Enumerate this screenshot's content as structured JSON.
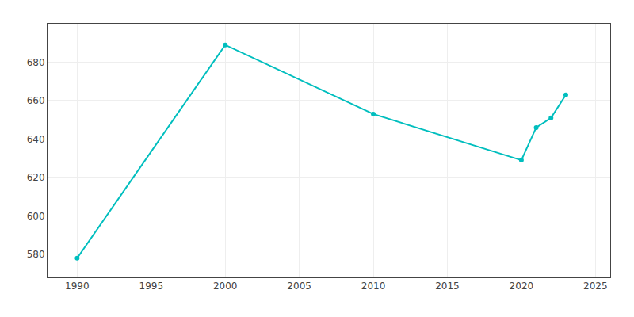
{
  "chart_data": {
    "type": "line",
    "x": [
      1990,
      2000,
      2010,
      2020,
      2021,
      2022,
      2023
    ],
    "values": [
      578,
      689,
      653,
      629,
      646,
      651,
      663
    ],
    "color": "#00BEBE",
    "marker": "circle",
    "xlim": [
      1988,
      2026
    ],
    "ylim": [
      568,
      700
    ],
    "xticks": [
      1990,
      1995,
      2000,
      2005,
      2010,
      2015,
      2020,
      2025
    ],
    "yticks": [
      580,
      600,
      620,
      640,
      660,
      680
    ],
    "grid": true
  }
}
